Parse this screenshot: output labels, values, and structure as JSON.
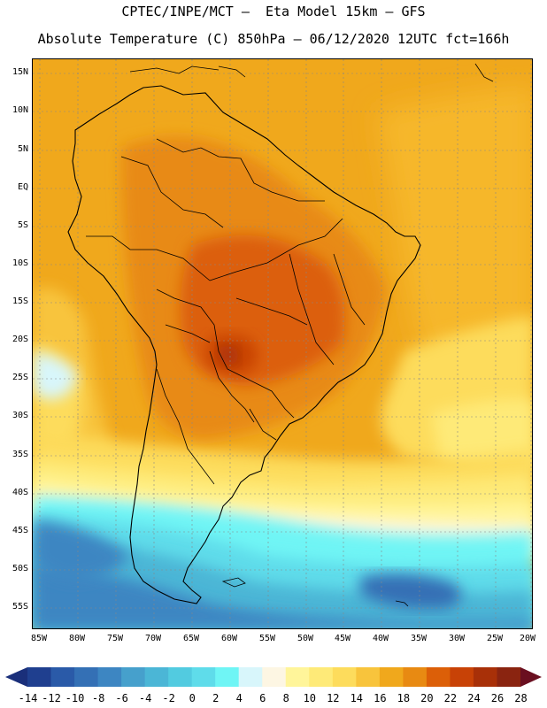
{
  "header": {
    "title_line1": "CPTEC/INPE/MCT –  Eta Model 15km – GFS",
    "title_line2": "Absolute Temperature (C) 850hPa – 06/12/2020 12UTC fct=166h"
  },
  "map": {
    "lat_labels": [
      "15N",
      "10N",
      "5N",
      "EQ",
      "5S",
      "10S",
      "15S",
      "20S",
      "25S",
      "30S",
      "35S",
      "40S",
      "45S",
      "50S",
      "55S"
    ],
    "lon_labels": [
      "85W",
      "80W",
      "75W",
      "70W",
      "65W",
      "60W",
      "55W",
      "50W",
      "45W",
      "40W",
      "35W",
      "30W",
      "25W",
      "20W"
    ]
  },
  "colorbar": {
    "labels": [
      "-14",
      "-12",
      "-10",
      "-8",
      "-6",
      "-4",
      "-2",
      "0",
      "2",
      "4",
      "6",
      "8",
      "10",
      "12",
      "14",
      "16",
      "18",
      "20",
      "22",
      "24",
      "26",
      "28"
    ],
    "colors": [
      "#1f3f8f",
      "#2a5aa8",
      "#3470b5",
      "#3d86c2",
      "#46a0cc",
      "#4bb6d6",
      "#52cbe0",
      "#5fdcea",
      "#6ff5f5",
      "#d8f6fb",
      "#fdf6e3",
      "#fff59a",
      "#feea78",
      "#fddc5c",
      "#f8c43c",
      "#f0a81c",
      "#e88a12",
      "#dc5f08",
      "#c84206",
      "#a83008",
      "#8a2410"
    ],
    "left_arrow": "#1a2f7a",
    "right_arrow": "#6a0f20"
  }
}
